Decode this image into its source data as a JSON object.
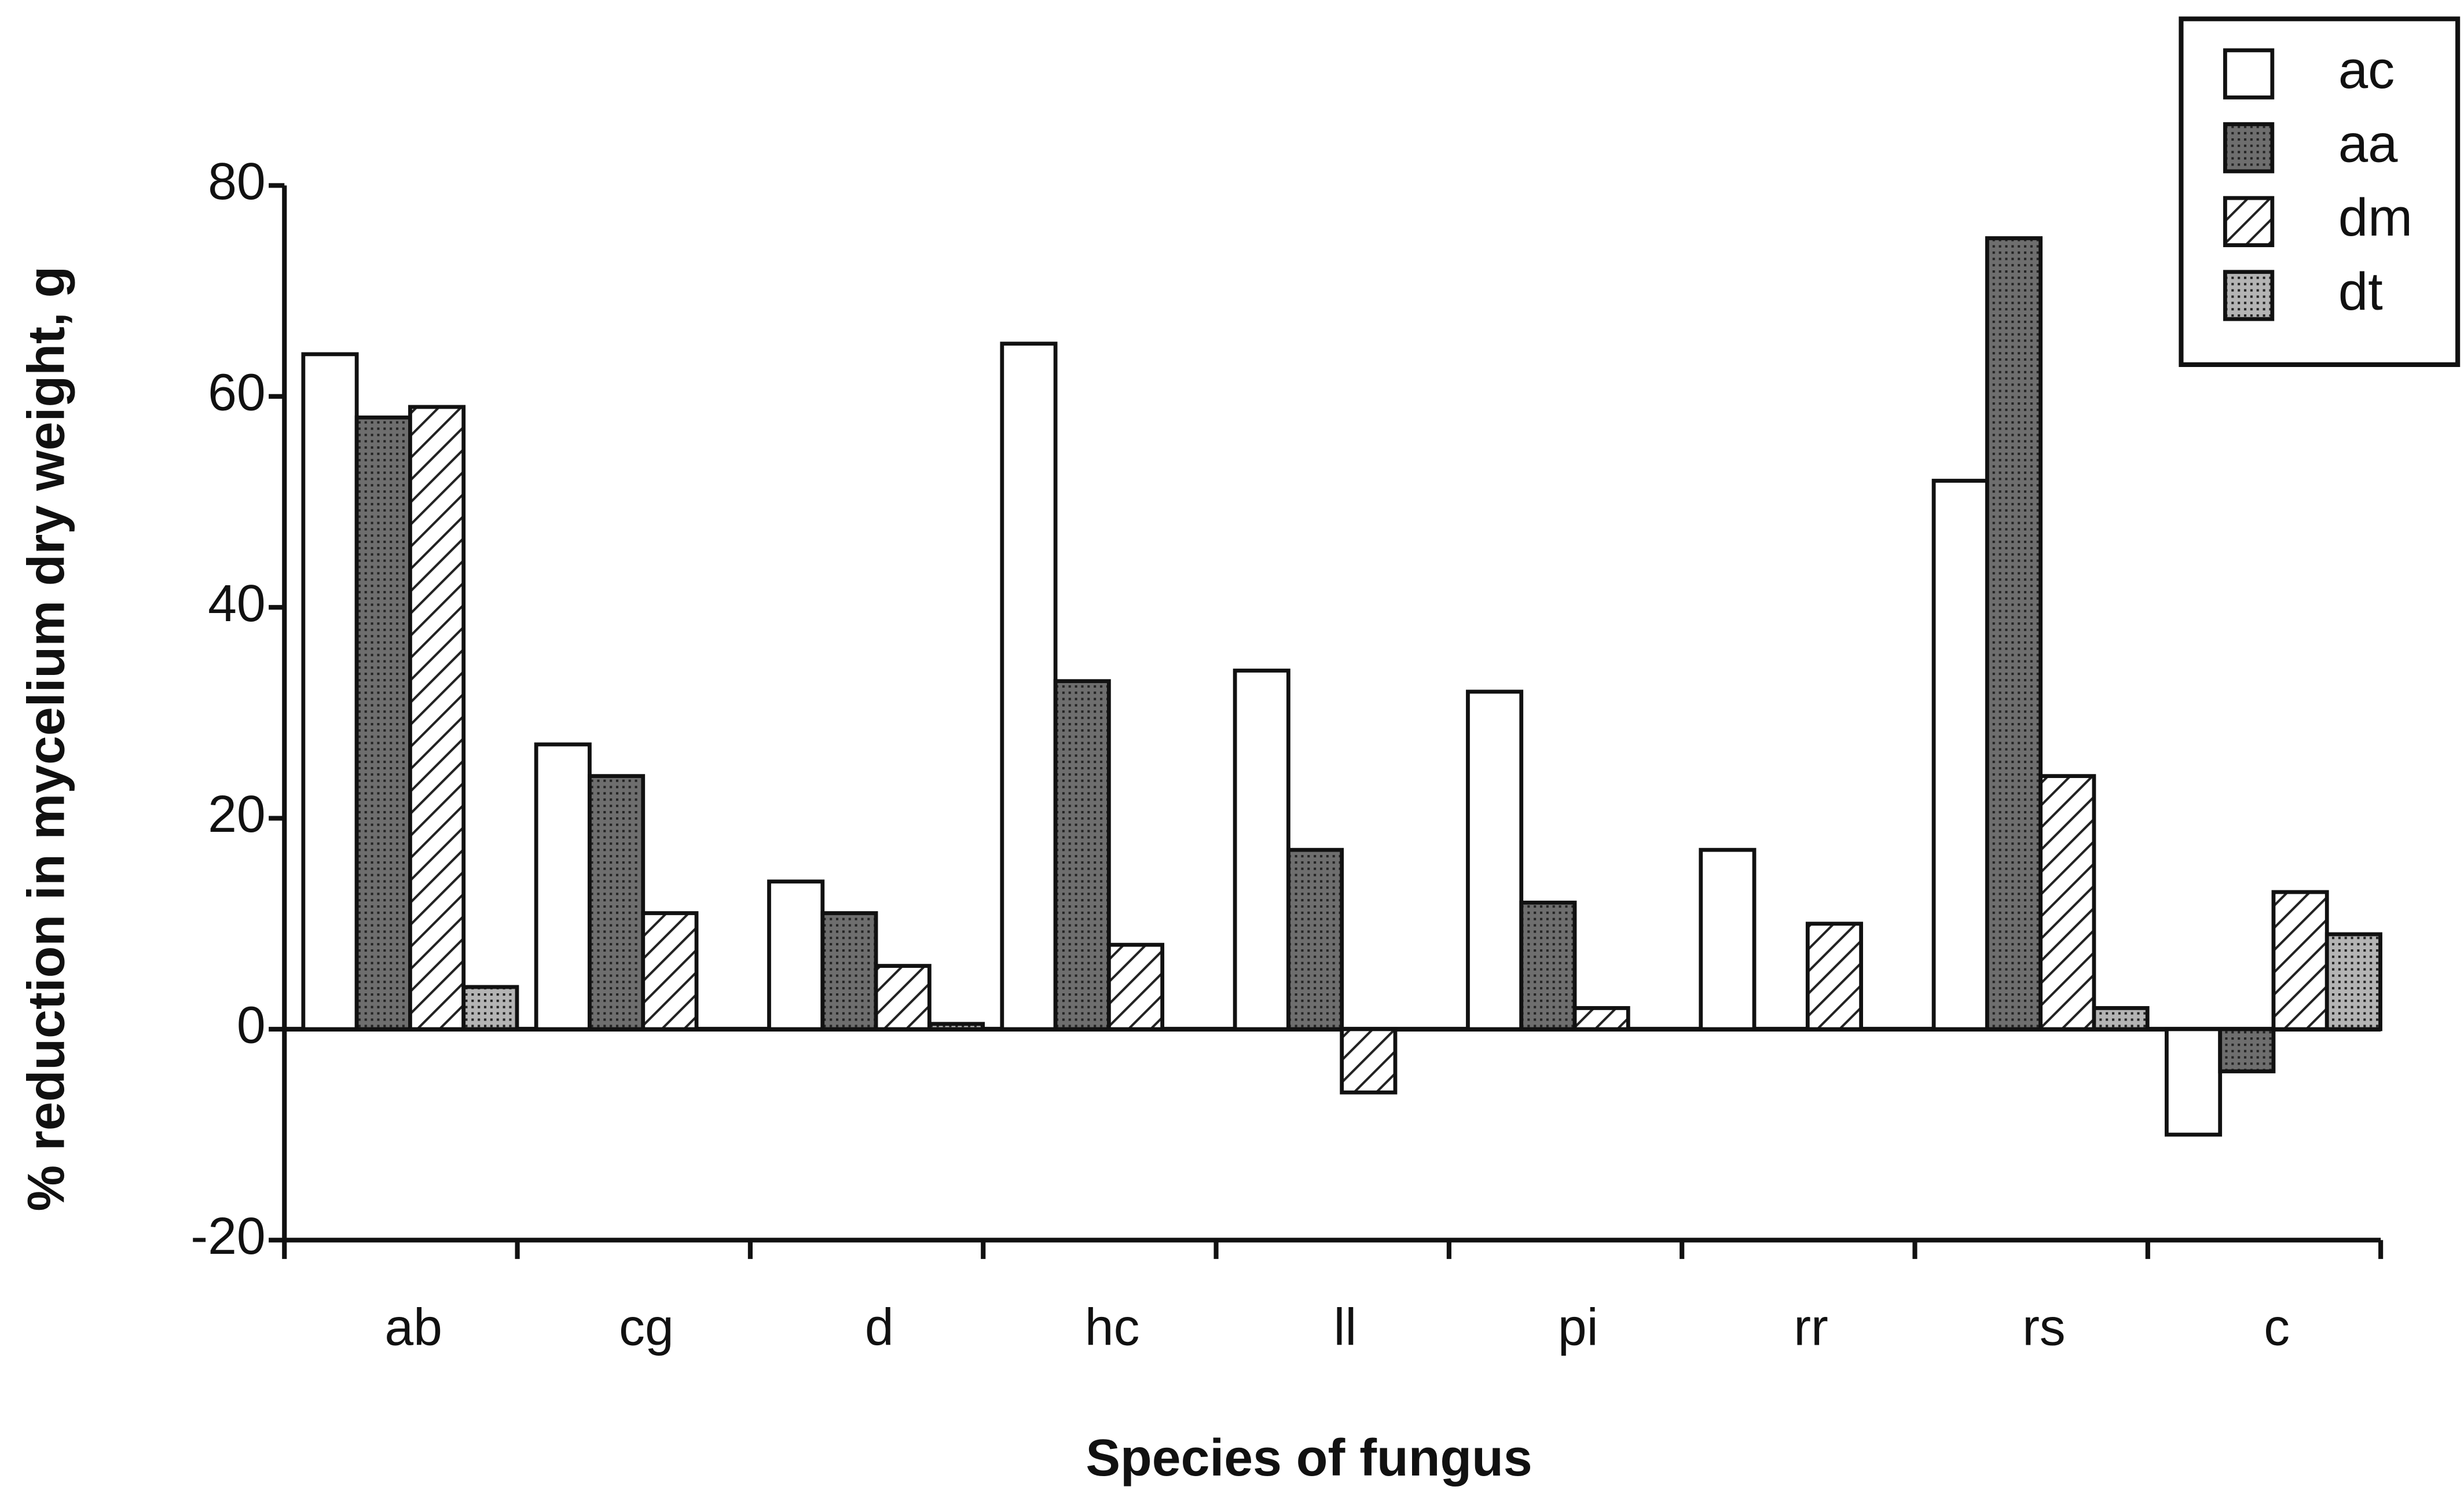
{
  "chart_data": {
    "type": "bar",
    "xlabel": "Species of fungus",
    "ylabel": "% reduction in mycelium dry weight, g",
    "categories": [
      "ab",
      "cg",
      "d",
      "hc",
      "ll",
      "pi",
      "rr",
      "rs",
      "c"
    ],
    "series": [
      {
        "name": "ac",
        "color": "#ffffff",
        "fill_style": "solid",
        "values": [
          64,
          27,
          14,
          65,
          34,
          32,
          17,
          52,
          -10
        ]
      },
      {
        "name": "aa",
        "color": "#6e6e6e",
        "fill_style": "stipple",
        "values": [
          58,
          24,
          11,
          33,
          17,
          12,
          null,
          75,
          -4
        ]
      },
      {
        "name": "dm",
        "color": "#ffffff",
        "fill_style": "hatch",
        "values": [
          59,
          11,
          6,
          8,
          -6,
          2,
          10,
          24,
          13
        ]
      },
      {
        "name": "dt",
        "color": "#b4b4b4",
        "fill_style": "stipple",
        "values": [
          4,
          null,
          0.5,
          null,
          null,
          null,
          null,
          2,
          9
        ]
      }
    ],
    "ylim": [
      -20,
      80
    ],
    "yticks": [
      -20,
      0,
      20,
      40,
      60,
      80
    ],
    "legend": "upper right"
  }
}
